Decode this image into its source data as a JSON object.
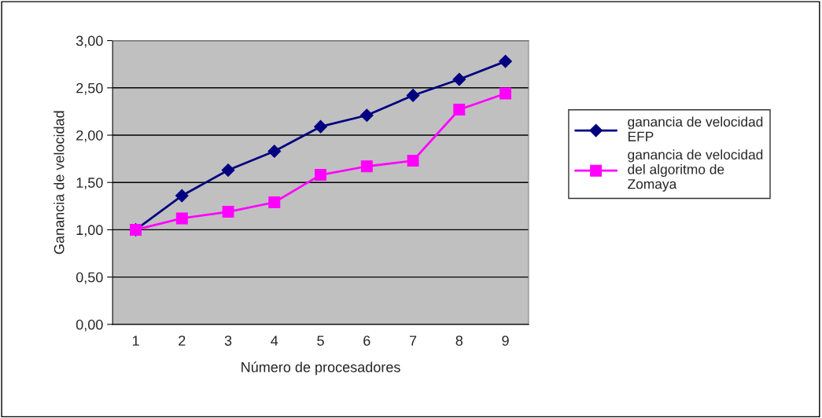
{
  "chart_data": {
    "type": "line",
    "xlabel": "Número de procesadores",
    "ylabel": "Ganancia de velocidad",
    "categories": [
      "1",
      "2",
      "3",
      "4",
      "5",
      "6",
      "7",
      "8",
      "9"
    ],
    "series": [
      {
        "name": "ganancia de velocidad EFP",
        "color": "#000080",
        "marker": "diamond",
        "values": [
          1.0,
          1.36,
          1.63,
          1.83,
          2.09,
          2.21,
          2.42,
          2.59,
          2.78
        ]
      },
      {
        "name": "ganancia de velocidad del algoritmo de Zomaya",
        "color": "#ff00ff",
        "marker": "square",
        "values": [
          1.0,
          1.12,
          1.19,
          1.29,
          1.58,
          1.67,
          1.73,
          2.27,
          2.44
        ]
      }
    ],
    "ylim": [
      0,
      3
    ],
    "yticks": [
      {
        "value": 0,
        "label": "0,00"
      },
      {
        "value": 0.5,
        "label": "0,50"
      },
      {
        "value": 1,
        "label": "1,00"
      },
      {
        "value": 1.5,
        "label": "1,50"
      },
      {
        "value": 2,
        "label": "2,00"
      },
      {
        "value": 2.5,
        "label": "2,50"
      },
      {
        "value": 3,
        "label": "3,00"
      }
    ],
    "grid": "y",
    "legend": "right",
    "line_style": "solid"
  }
}
